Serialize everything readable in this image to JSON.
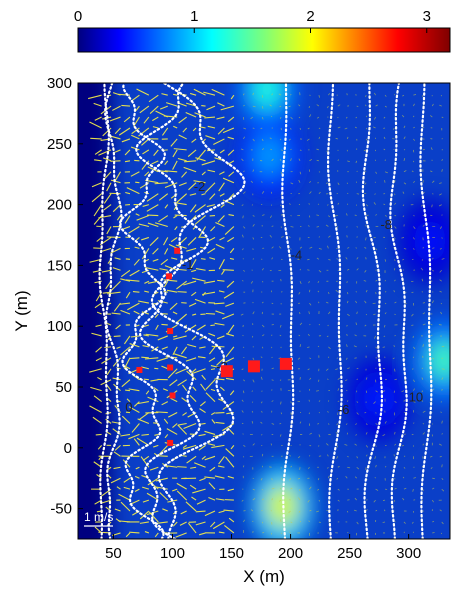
{
  "chart_data": {
    "type": "heatmap",
    "overlays": [
      "velocity-vectors",
      "depth-contours",
      "markers"
    ],
    "xlabel": "X (m)",
    "ylabel": "Y (m)",
    "xlim": [
      20,
      335
    ],
    "ylim": [
      -75,
      300
    ],
    "xticks": [
      50,
      100,
      150,
      200,
      250,
      300
    ],
    "yticks": [
      -50,
      0,
      50,
      100,
      150,
      200,
      250,
      300
    ],
    "colorbar": {
      "range": [
        0,
        3.2
      ],
      "ticks": [
        0,
        1,
        2,
        3
      ],
      "colormap": "jet",
      "placement": "top"
    },
    "hotspots": [
      {
        "x": 193,
        "y": -48,
        "value": 1.9
      },
      {
        "x": 182,
        "y": 240,
        "value": 0.9
      },
      {
        "x": 180,
        "y": 295,
        "value": 1.3
      },
      {
        "x": 330,
        "y": 72,
        "value": 1.4
      },
      {
        "x": 318,
        "y": 170,
        "value": 0.45
      },
      {
        "x": 275,
        "y": 40,
        "value": 0.5
      }
    ],
    "contour_labels": [
      {
        "text": "-2",
        "x": 137,
        "y": 63
      },
      {
        "text": "-4",
        "x": 200,
        "y": 155
      },
      {
        "text": "-6",
        "x": 240,
        "y": 28
      },
      {
        "text": "-8",
        "x": 276,
        "y": 180
      },
      {
        "text": "10",
        "x": 300,
        "y": 38
      },
      {
        "text": "-2",
        "x": 118,
        "y": 211
      },
      {
        "text": "-1",
        "x": 108,
        "y": 147
      },
      {
        "text": "0",
        "x": 60,
        "y": 30
      }
    ],
    "markers_large": [
      {
        "x": 146,
        "y": 63
      },
      {
        "x": 169,
        "y": 67
      },
      {
        "x": 196,
        "y": 69
      }
    ],
    "markers_small": [
      {
        "x": 104,
        "y": 162
      },
      {
        "x": 97,
        "y": 141
      },
      {
        "x": 98,
        "y": 96
      },
      {
        "x": 72,
        "y": 64
      },
      {
        "x": 98,
        "y": 66
      },
      {
        "x": 100,
        "y": 43
      },
      {
        "x": 98,
        "y": 4
      }
    ],
    "scale_bar": "1 m/s",
    "colors": {
      "vectors": "#f0e84a",
      "contours": "#ffffff",
      "markers": "#ff1a1a",
      "background_low": "#00007f"
    }
  }
}
